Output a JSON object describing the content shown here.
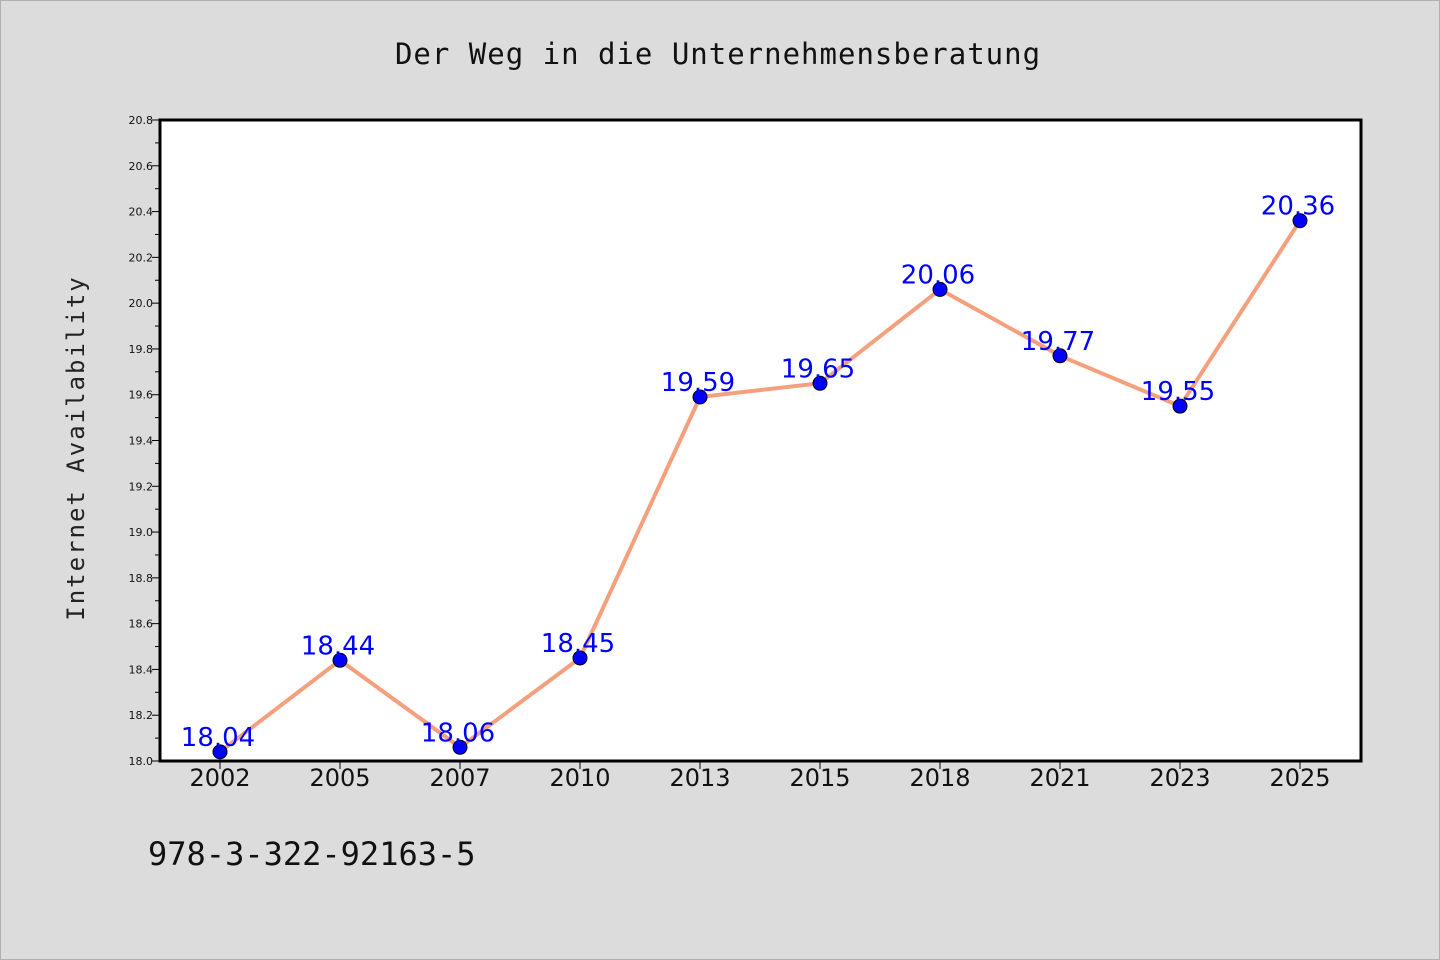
{
  "chart_data": {
    "type": "line",
    "title": "Der Weg in die Unternehmensberatung",
    "xlabel": "",
    "ylabel": "Internet Availability",
    "categories": [
      "2002",
      "2005",
      "2007",
      "2010",
      "2013",
      "2015",
      "2018",
      "2021",
      "2023",
      "2025"
    ],
    "values": [
      18.04,
      18.44,
      18.06,
      18.45,
      19.59,
      19.65,
      20.06,
      19.77,
      19.55,
      20.36
    ],
    "data_labels": [
      "18.04",
      "18.44",
      "18.06",
      "18.45",
      "19.59",
      "19.65",
      "20.06",
      "19.77",
      "19.55",
      "20.36"
    ],
    "ylim": [
      18.0,
      20.8
    ],
    "yticks": [
      "18.0",
      "18.2",
      "18.4",
      "18.6",
      "18.8",
      "19.0",
      "19.2",
      "19.4",
      "19.6",
      "19.8",
      "20.0",
      "20.2",
      "20.4",
      "20.6",
      "20.8"
    ],
    "grid": false,
    "colors": {
      "line": "#f4a07c",
      "marker": "#0000ff",
      "label": "#0000ff",
      "background": "#dcdcdc",
      "plot_area": "#ffffff"
    }
  },
  "footer": {
    "note": "978-3-322-92163-5"
  }
}
